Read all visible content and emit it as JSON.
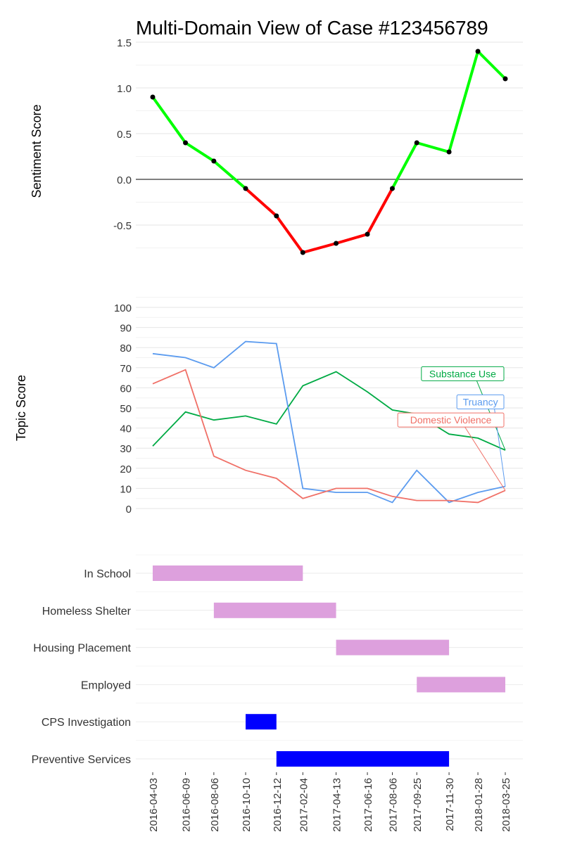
{
  "title": "Multi-Domain View of Case #123456789",
  "chart_data": [
    {
      "type": "line",
      "panel": "sentiment",
      "ylabel": "Sentiment Score",
      "ylim": [
        -0.9,
        1.5
      ],
      "yticks": [
        "1.5",
        "1.0",
        "0.5",
        "0.0",
        "-0.5"
      ],
      "ytick_values": [
        1.5,
        1.0,
        0.5,
        0.0,
        -0.5
      ],
      "x": [
        "2016-04-03",
        "2016-06-09",
        "2016-08-06",
        "2016-10-10",
        "2016-12-12",
        "2017-02-04",
        "2017-04-13",
        "2017-06-16",
        "2017-08-06",
        "2017-09-25",
        "2017-11-30",
        "2018-01-28",
        "2018-03-25"
      ],
      "values": [
        0.9,
        0.4,
        0.2,
        -0.1,
        -0.4,
        -0.8,
        -0.7,
        -0.6,
        -0.1,
        0.4,
        0.3,
        1.4,
        1.1
      ],
      "positive_color": "#00ff00",
      "negative_color": "#ff0000",
      "zero_line": true,
      "grid": true
    },
    {
      "type": "line",
      "panel": "topics",
      "ylabel": "Topic Score",
      "ylim": [
        -5,
        103
      ],
      "yticks": [
        "100",
        "90",
        "80",
        "70",
        "60",
        "50",
        "40",
        "30",
        "20",
        "10",
        "0"
      ],
      "ytick_values": [
        100,
        90,
        80,
        70,
        60,
        50,
        40,
        30,
        20,
        10,
        0
      ],
      "x": [
        "2016-04-03",
        "2016-06-09",
        "2016-08-06",
        "2016-10-10",
        "2016-12-12",
        "2017-02-04",
        "2017-04-13",
        "2017-06-16",
        "2017-08-06",
        "2017-09-25",
        "2017-11-30",
        "2018-01-28",
        "2018-03-25"
      ],
      "series": [
        {
          "name": "Substance Use",
          "color": "#00aa44",
          "label_value": 67,
          "values": [
            31,
            48,
            44,
            46,
            42,
            61,
            68,
            58,
            49,
            47,
            37,
            35,
            29
          ]
        },
        {
          "name": "Truancy",
          "color": "#5b9bef",
          "label_value": 53,
          "values": [
            77,
            75,
            70,
            83,
            82,
            10,
            8,
            8,
            3,
            19,
            3,
            8,
            11
          ]
        },
        {
          "name": "Domestic Violence",
          "color": "#f07067",
          "label_value": 44,
          "values": [
            62,
            69,
            26,
            19,
            15,
            5,
            10,
            10,
            6,
            4,
            4,
            3,
            9
          ]
        }
      ],
      "grid": true
    },
    {
      "type": "timeline",
      "panel": "services",
      "x_ticks": [
        "2016-04-03",
        "2016-06-09",
        "2016-08-06",
        "2016-10-10",
        "2016-12-12",
        "2017-02-04",
        "2017-04-13",
        "2017-06-16",
        "2017-08-06",
        "2017-09-25",
        "2017-11-30",
        "2018-01-28",
        "2018-03-25"
      ],
      "categories": [
        "In School",
        "Homeless Shelter",
        "Housing Placement",
        "Employed",
        "CPS Investigation",
        "Preventive Services"
      ],
      "bars": [
        {
          "category": "In School",
          "start": "2016-04-03",
          "end": "2017-02-04",
          "color": "#dda0dd"
        },
        {
          "category": "Homeless Shelter",
          "start": "2016-08-06",
          "end": "2017-04-13",
          "color": "#dda0dd"
        },
        {
          "category": "Housing Placement",
          "start": "2017-04-13",
          "end": "2017-11-30",
          "color": "#dda0dd"
        },
        {
          "category": "Employed",
          "start": "2017-09-25",
          "end": "2018-03-25",
          "color": "#dda0dd"
        },
        {
          "category": "CPS Investigation",
          "start": "2016-10-10",
          "end": "2016-12-12",
          "color": "#0000ff"
        },
        {
          "category": "Preventive Services",
          "start": "2016-12-12",
          "end": "2017-11-30",
          "color": "#0000ff"
        }
      ]
    }
  ]
}
